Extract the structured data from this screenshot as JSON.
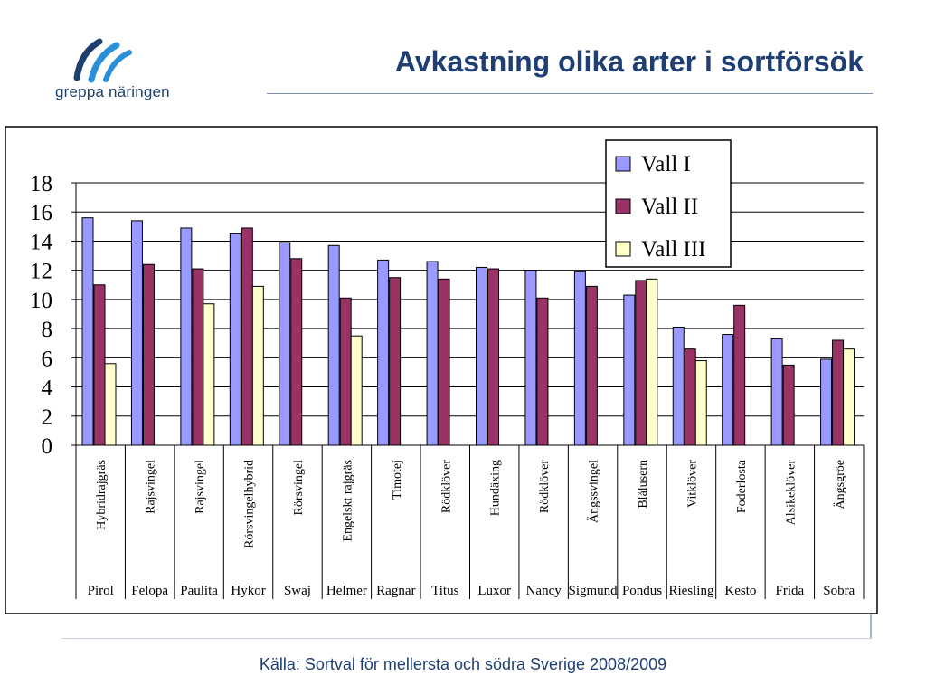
{
  "logo": {
    "name": "greppa-naringen-logo",
    "text": "greppa näringen",
    "color": "#1d3f6e"
  },
  "header": {
    "title": "Avkastning olika arter i sortförsök"
  },
  "footer": {
    "source": "Källa: Sortval för mellersta och södra Sverige 2008/2009"
  },
  "chart_data": {
    "type": "bar",
    "title": "",
    "xlabel": "",
    "ylabel": "",
    "ylim": [
      0,
      18
    ],
    "yticks": [
      "0",
      "2",
      "4",
      "6",
      "8",
      "10",
      "12",
      "14",
      "16",
      "18"
    ],
    "grid": true,
    "legend_position": "top-right",
    "categories": [
      "Hybridrajgräs",
      "Rajsvingel",
      "Rajsvingel",
      "Rörsvingelhybrid",
      "Rörsvingel",
      "Engelskt rajgräs",
      "Timotej",
      "Rödklöver",
      "Hundäxing",
      "Rödklöver",
      "Ängssvingel",
      "Blålusern",
      "Vitklöver",
      "Foderlosta",
      "Alsikeklöver",
      "Ängsgröe"
    ],
    "varieties": [
      "Pirol",
      "Felopa",
      "Paulita",
      "Hykor",
      "Swaj",
      "Helmer",
      "Ragnar",
      "Titus",
      "Luxor",
      "Nancy",
      "Sigmund",
      "Pondus",
      "Riesling",
      "Kesto",
      "Frida",
      "Sobra"
    ],
    "series": [
      {
        "name": "Vall I",
        "color": "#9999ff",
        "values": [
          15.6,
          15.4,
          14.9,
          14.5,
          13.9,
          13.7,
          12.7,
          12.6,
          12.2,
          12.0,
          11.9,
          10.3,
          8.1,
          7.6,
          7.3,
          5.9
        ]
      },
      {
        "name": "Vall II",
        "color": "#993366",
        "values": [
          11.0,
          12.4,
          12.1,
          14.9,
          12.8,
          10.1,
          11.5,
          11.4,
          12.1,
          10.1,
          10.9,
          11.3,
          6.6,
          9.6,
          5.5,
          7.2
        ]
      },
      {
        "name": "Vall III",
        "color": "#ffffcc",
        "values": [
          5.6,
          null,
          9.7,
          10.9,
          null,
          7.5,
          null,
          null,
          null,
          null,
          null,
          11.4,
          5.8,
          null,
          null,
          6.6
        ]
      }
    ]
  }
}
